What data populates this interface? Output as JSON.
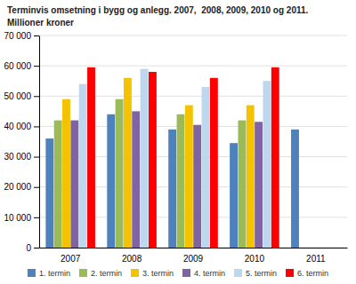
{
  "chart_data": {
    "type": "bar",
    "title": "Terminvis omsetning i bygg og anlegg. 2007,  2008, 2009, 2010 og 2011.",
    "subtitle": "Millioner kroner",
    "categories": [
      "2007",
      "2008",
      "2009",
      "2010",
      "2011"
    ],
    "series": [
      {
        "name": "1. termin",
        "color": "#4f81bd",
        "values": [
          36000,
          44000,
          39000,
          34500,
          39000
        ]
      },
      {
        "name": "2. termin",
        "color": "#9bbb59",
        "values": [
          42000,
          49000,
          44000,
          42000,
          0
        ]
      },
      {
        "name": "3. termin",
        "color": "#f4c300",
        "values": [
          49000,
          56000,
          47000,
          47000,
          0
        ]
      },
      {
        "name": "4. termin",
        "color": "#8064a2",
        "values": [
          42000,
          45000,
          40500,
          41500,
          0
        ]
      },
      {
        "name": "5. termin",
        "color": "#bdd7ee",
        "values": [
          54000,
          59000,
          53000,
          55000,
          0
        ]
      },
      {
        "name": "6. termin",
        "color": "#ff0000",
        "values": [
          59500,
          58000,
          56000,
          59500,
          0
        ]
      }
    ],
    "ylim": [
      0,
      70000
    ],
    "yticks": [
      0,
      {
        "value": 10000,
        "label": "10 000"
      },
      {
        "value": 20000,
        "label": "20 000"
      },
      {
        "value": 30000,
        "label": "30 000"
      },
      {
        "value": 40000,
        "label": "40 000"
      },
      {
        "value": 50000,
        "label": "50 000"
      },
      {
        "value": 60000,
        "label": "60 000"
      },
      {
        "value": 70000,
        "label": "70 000"
      }
    ],
    "grid": true,
    "legend": "bottom"
  }
}
